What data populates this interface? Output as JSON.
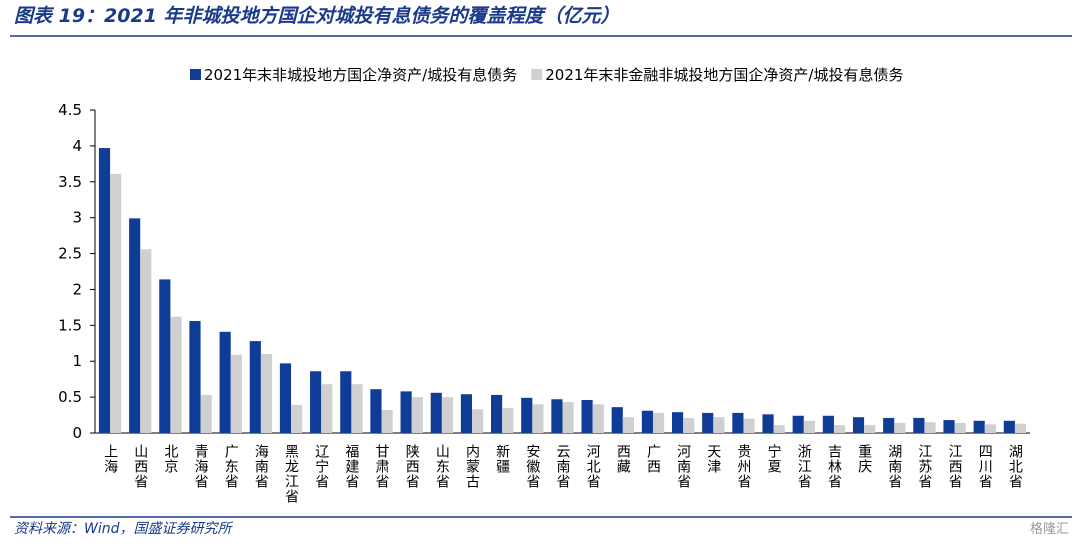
{
  "title": "图表 19：2021 年非城投地方国企对城投有息债务的覆盖程度（亿元）",
  "source": "资料来源：Wind，国盛证券研究所",
  "watermark": "格隆汇",
  "chart_data": {
    "type": "bar",
    "categories": [
      "上海",
      "山西省",
      "北京",
      "青海省",
      "广东省",
      "海南省",
      "黑龙江省",
      "辽宁省",
      "福建省",
      "甘肃省",
      "陕西省",
      "山东省",
      "内蒙古",
      "新疆",
      "安徽省",
      "云南省",
      "河北省",
      "西藏",
      "广西",
      "河南省",
      "天津",
      "贵州省",
      "宁夏",
      "浙江省",
      "吉林省",
      "重庆",
      "湖南省",
      "江苏省",
      "江西省",
      "四川省",
      "湖北省"
    ],
    "series": [
      {
        "name": "2021年末非城投地方国企净资产/城投有息债务",
        "color": "#0f3c96",
        "values": [
          3.97,
          2.99,
          2.14,
          1.56,
          1.41,
          1.28,
          0.97,
          0.86,
          0.86,
          0.61,
          0.58,
          0.56,
          0.54,
          0.53,
          0.49,
          0.47,
          0.46,
          0.36,
          0.31,
          0.29,
          0.28,
          0.28,
          0.26,
          0.24,
          0.24,
          0.22,
          0.21,
          0.21,
          0.18,
          0.17,
          0.17
        ]
      },
      {
        "name": "2021年末非金融非城投地方国企净资产/城投有息债务",
        "color": "#d0d0d0",
        "values": [
          3.61,
          2.56,
          1.62,
          0.53,
          1.09,
          1.1,
          0.39,
          0.68,
          0.68,
          0.32,
          0.5,
          0.5,
          0.33,
          0.35,
          0.4,
          0.43,
          0.4,
          0.22,
          0.28,
          0.21,
          0.22,
          0.2,
          0.11,
          0.17,
          0.11,
          0.11,
          0.14,
          0.15,
          0.14,
          0.12,
          0.13
        ]
      }
    ],
    "ylim": [
      0,
      4.5
    ],
    "yticks": [
      0,
      0.5,
      1,
      1.5,
      2,
      2.5,
      3,
      3.5,
      4,
      4.5
    ],
    "grid": false
  }
}
